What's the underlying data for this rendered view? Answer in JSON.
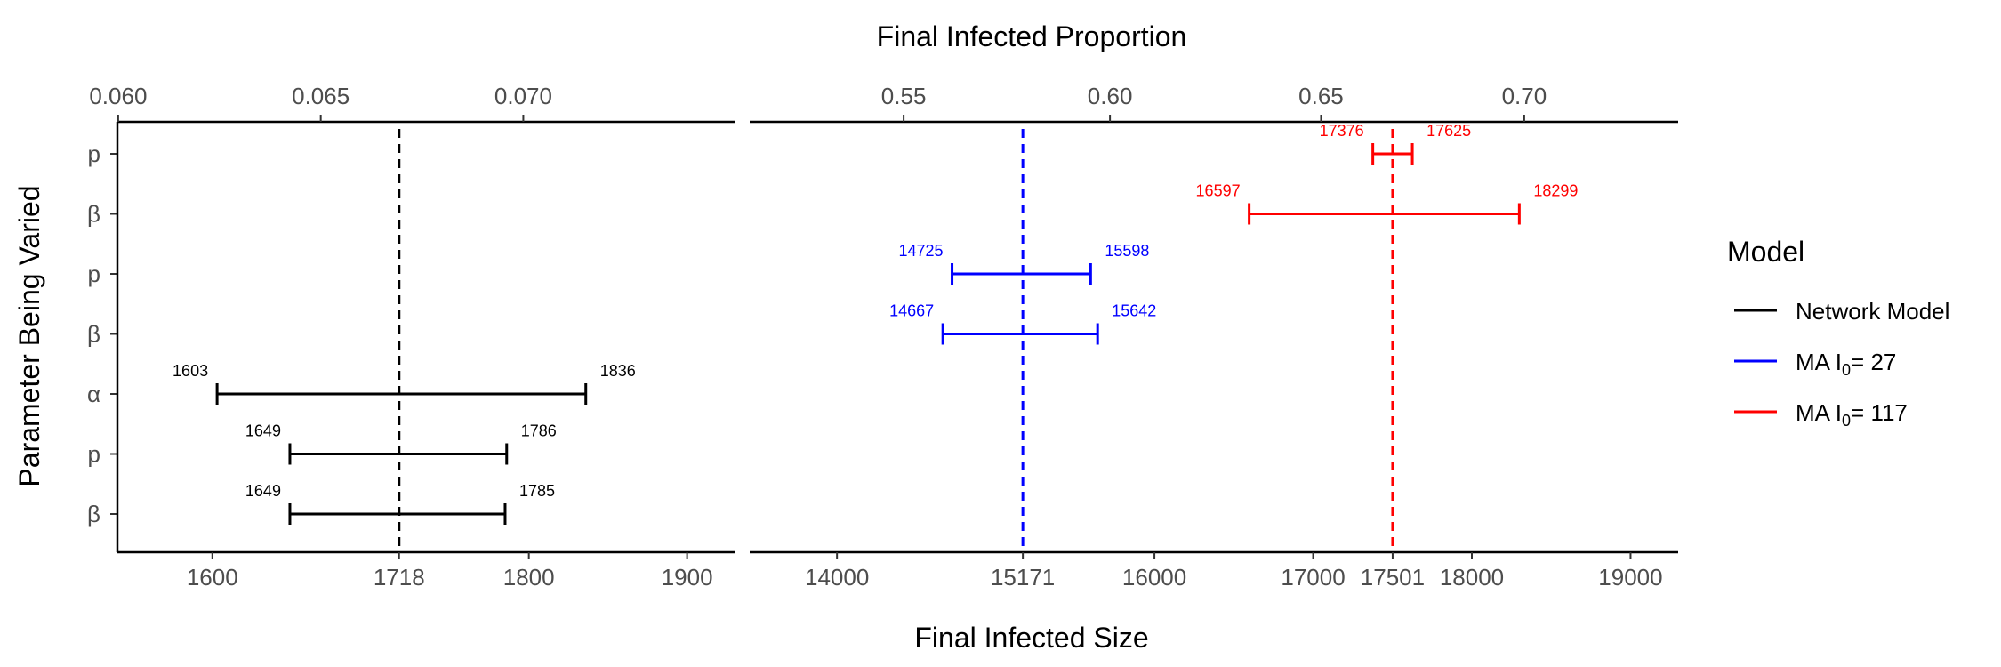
{
  "chart_data": {
    "type": "errorbar",
    "title": "Final Infected Proportion",
    "xlabel": "Final Infected Size",
    "ylabel": "Parameter Being Varied",
    "y_categories": [
      "p",
      "β",
      "p",
      "β",
      "α",
      "p",
      "β"
    ],
    "legend": {
      "title": "Model",
      "position": "right",
      "entries": [
        {
          "label": "Network Model",
          "color": "#000000",
          "key": "network"
        },
        {
          "label_prefix": "MA I",
          "label_sub": "0",
          "label_suffix": "= 27",
          "color": "#0000ff",
          "key": "ma27"
        },
        {
          "label_prefix": "MA I",
          "label_sub": "0",
          "label_suffix": "= 117",
          "color": "#ff0000",
          "key": "ma117"
        }
      ]
    },
    "panels": [
      {
        "name": "network",
        "xlim": [
          1540,
          1930
        ],
        "bottom_ticks": [
          1600,
          1718,
          1800,
          1900
        ],
        "top_ticks": [
          {
            "label": "0.060",
            "value": 1540.5
          },
          {
            "label": "0.065",
            "value": 1668.5
          },
          {
            "label": "0.070",
            "value": 1796.5
          }
        ],
        "reference": {
          "value": 1718,
          "color": "#000000"
        },
        "intervals": [
          {
            "row": 4,
            "low": 1603,
            "high": 1836,
            "color": "#000000"
          },
          {
            "row": 5,
            "low": 1649,
            "high": 1786,
            "color": "#000000"
          },
          {
            "row": 6,
            "low": 1649,
            "high": 1785,
            "color": "#000000"
          }
        ]
      },
      {
        "name": "mass-action",
        "xlim": [
          13450,
          19300
        ],
        "bottom_ticks": [
          14000,
          15171,
          16000,
          17000,
          17501,
          18000,
          19000
        ],
        "top_ticks": [
          {
            "label": "0.55",
            "value": 14420
          },
          {
            "label": "0.60",
            "value": 15720
          },
          {
            "label": "0.65",
            "value": 17050
          },
          {
            "label": "0.70",
            "value": 18330
          }
        ],
        "references": [
          {
            "value": 15171,
            "color": "#0000ff"
          },
          {
            "value": 17501,
            "color": "#ff0000"
          }
        ],
        "intervals": [
          {
            "row": 0,
            "low": 17376,
            "high": 17625,
            "color": "#ff0000"
          },
          {
            "row": 1,
            "low": 16597,
            "high": 18299,
            "color": "#ff0000"
          },
          {
            "row": 2,
            "low": 14725,
            "high": 15598,
            "color": "#0000ff"
          },
          {
            "row": 3,
            "low": 14667,
            "high": 15642,
            "color": "#0000ff"
          }
        ]
      }
    ]
  }
}
